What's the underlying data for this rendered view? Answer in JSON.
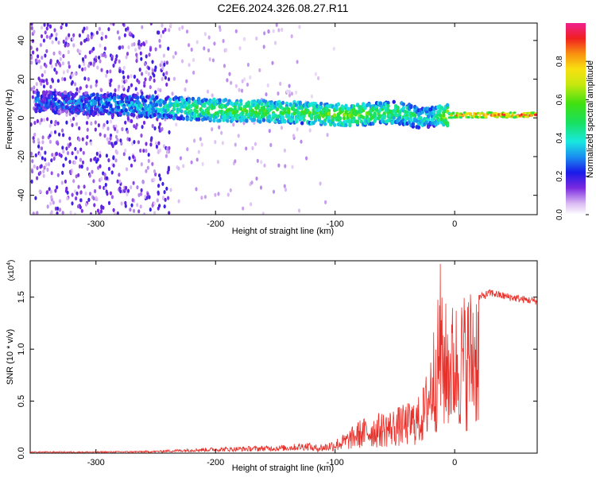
{
  "title": "C2E6.2024.326.08.27.R11",
  "colors": {
    "snr_line": "#e8302a",
    "axis": "#000000",
    "background": "#ffffff"
  },
  "chart_data": [
    {
      "type": "heatmap",
      "name": "Spectrogram",
      "xlabel": "Height of straight line (km)",
      "ylabel": "Frequency (Hz)",
      "xlim": [
        -355,
        69
      ],
      "ylim": [
        -50,
        49
      ],
      "xticks": [
        -300,
        -200,
        -100,
        0
      ],
      "yticks": [
        -40,
        -20,
        0,
        20,
        40
      ],
      "colorbar": {
        "label": "Normalized spectral amplitude",
        "range": [
          0,
          1
        ],
        "ticks": [
          0.0,
          0.2,
          0.4,
          0.6,
          0.8
        ],
        "tick_labels": [
          "0.0",
          "0.2",
          "0.4",
          "0.6",
          "0.8"
        ],
        "colormap": "rainbow (white-violet-blue-cyan-green-yellow-red-magenta)"
      },
      "ridge": {
        "x": [
          -330,
          -300,
          -260,
          -230,
          -200,
          -170,
          -140,
          -110,
          -90,
          -70,
          -50,
          -35,
          -25,
          -20,
          -10,
          0,
          20,
          40,
          69
        ],
        "freq": [
          8,
          7,
          6,
          5,
          4,
          3.5,
          3,
          2,
          1.5,
          2,
          3,
          1,
          0,
          0,
          1,
          1.5,
          1.5,
          1.5,
          1.5
        ],
        "amplitude": [
          0.25,
          0.3,
          0.35,
          0.45,
          0.55,
          0.55,
          0.5,
          0.55,
          0.6,
          0.55,
          0.5,
          0.45,
          0.4,
          0.35,
          0.6,
          0.85,
          0.95,
          0.92,
          0.9
        ]
      }
    },
    {
      "type": "line",
      "name": "SNR",
      "xlabel": "Height of straight line (km)",
      "ylabel": "SNR (10 * v/v)",
      "y_multiplier": "(x10",
      "y_multiplier_exp": "4",
      "y_multiplier_close": ")",
      "xlim": [
        -355,
        69
      ],
      "ylim": [
        0,
        1.85
      ],
      "xticks": [
        -300,
        -200,
        -100,
        0
      ],
      "yticks": [
        0.0,
        0.5,
        1.0,
        1.5
      ],
      "ytick_labels": [
        "0.0",
        "0.5",
        "1.0",
        "1.5"
      ],
      "envelope": {
        "x": [
          -355,
          -300,
          -250,
          -220,
          -180,
          -140,
          -110,
          -100,
          -90,
          -80,
          -70,
          -60,
          -50,
          -40,
          -30,
          -25,
          -20,
          -15,
          -12,
          -10,
          -5,
          0,
          10,
          20,
          30,
          40,
          50,
          60,
          69
        ],
        "y": [
          0.01,
          0.01,
          0.015,
          0.03,
          0.04,
          0.05,
          0.08,
          0.12,
          0.18,
          0.28,
          0.32,
          0.35,
          0.38,
          0.42,
          0.48,
          0.6,
          0.95,
          1.25,
          1.4,
          1.3,
          1.25,
          1.28,
          1.38,
          1.5,
          1.55,
          1.52,
          1.5,
          1.48,
          1.47
        ]
      },
      "peak": {
        "x": -12,
        "y": 1.82
      }
    }
  ]
}
